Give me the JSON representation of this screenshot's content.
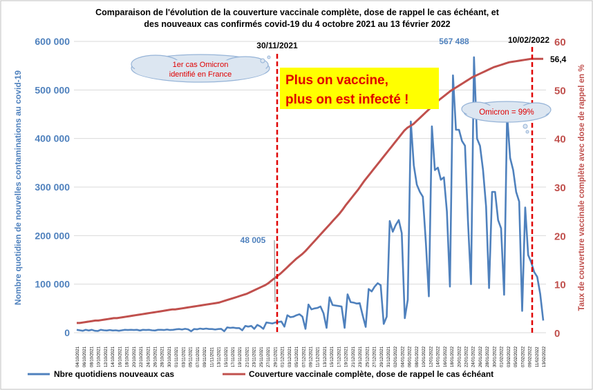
{
  "chart_data": {
    "type": "line",
    "title_lines": [
      "Comparaison de l'évolution de la couverture vaccinale complète, dose de rappel le cas échéant, et",
      "des nouveaux cas confirmés covid-19 du 4 octobre 2021 au 13 février 2022"
    ],
    "y_left_label": "Nombre quotidien de nouvelles contaminations au covid-19",
    "y_right_label": "Taux de couverture vaccinale complète avec dose de rappel en %",
    "y_left_ticks": [
      "0",
      "100 000",
      "200 000",
      "300 000",
      "400 000",
      "500 000",
      "600 000"
    ],
    "y_right_ticks": [
      "0",
      "10",
      "20",
      "30",
      "40",
      "50",
      "60"
    ],
    "y_left_range": [
      0,
      600000
    ],
    "y_right_range": [
      0,
      60
    ],
    "x_ticks": [
      "04/10/2021",
      "06/10/2021",
      "08/10/2021",
      "10/10/2021",
      "12/10/2021",
      "14/10/2021",
      "16/10/2021",
      "18/10/2021",
      "20/10/2021",
      "22/10/2021",
      "24/10/2021",
      "26/10/2021",
      "28/10/2021",
      "30/10/2021",
      "01/11/2021",
      "03/11/2021",
      "05/11/2021",
      "07/11/2021",
      "09/11/2021",
      "11/11/2021",
      "13/11/2021",
      "15/11/2021",
      "17/11/2021",
      "19/11/2021",
      "21/11/2021",
      "23/11/2021",
      "25/11/2021",
      "27/11/2021",
      "29/11/2021",
      "01/12/2021",
      "03/12/2021",
      "05/12/2021",
      "07/12/2021",
      "09/12/2021",
      "11/12/2021",
      "13/12/2021",
      "15/12/2021",
      "17/12/2021",
      "19/12/2021",
      "21/12/2021",
      "23/12/2021",
      "25/12/2021",
      "27/12/2021",
      "29/12/2021",
      "31/12/2021",
      "02/01/2022",
      "04/01/2022",
      "06/01/2022",
      "08/01/2022",
      "10/01/2022",
      "12/01/2022",
      "14/01/2022",
      "16/01/2022",
      "18/01/2022",
      "20/01/2022",
      "22/01/2022",
      "24/01/2022",
      "26/01/2022",
      "28/01/2022",
      "30/01/2022",
      "01/02/2022",
      "03/02/2022",
      "05/02/2022",
      "07/02/2022",
      "09/02/2022",
      "11/02/2022",
      "13/02/2022"
    ],
    "series": [
      {
        "name": "Nbre quotidiens nouveaux cas",
        "color": "#4f81bd",
        "axis": "left",
        "values": [
          6000,
          5000,
          4000,
          6000,
          4500,
          6000,
          4000,
          3500,
          6000,
          5000,
          4500,
          5500,
          4500,
          5000,
          4000,
          5000,
          6000,
          5500,
          6000,
          5500,
          6000,
          4500,
          6000,
          5500,
          6000,
          5000,
          4500,
          6000,
          6000,
          5500,
          6500,
          5500,
          6000,
          7000,
          7500,
          6500,
          8000,
          7000,
          3000,
          7500,
          7000,
          8500,
          7500,
          8500,
          7500,
          7500,
          6500,
          7500,
          8000,
          3000,
          11000,
          10000,
          10500,
          9500,
          9500,
          5000,
          14000,
          12500,
          14000,
          8000,
          16000,
          13000,
          8000,
          21000,
          20000,
          19000,
          21000,
          22000,
          23000,
          12500,
          36000,
          32000,
          33000,
          36000,
          38000,
          33000,
          8000,
          58000,
          48005,
          50000,
          51000,
          54000,
          40000,
          10000,
          73000,
          57000,
          56000,
          55000,
          54000,
          10000,
          79000,
          63000,
          62000,
          60000,
          61000,
          36000,
          12000,
          90000,
          85000,
          95000,
          102000,
          98000,
          18000,
          33000,
          230000,
          208000,
          222000,
          232000,
          205000,
          30000,
          68000,
          435000,
          345000,
          305000,
          290000,
          280000,
          185000,
          75000,
          425000,
          335000,
          340000,
          315000,
          320000,
          250000,
          95000,
          530000,
          418000,
          418000,
          395000,
          385000,
          230000,
          100000,
          567488,
          400000,
          385000,
          335000,
          260000,
          92000,
          290000,
          290000,
          232000,
          215000,
          78000,
          450000,
          360000,
          335000,
          290000,
          270000,
          45000,
          258000,
          160000,
          145000,
          125000,
          115000,
          80000,
          25000
        ]
      },
      {
        "name": "Couverture vaccinale complète, dose de rappel le cas échéant",
        "color": "#c0504d",
        "axis": "right",
        "values": [
          2,
          2,
          2.1,
          2.2,
          2.3,
          2.4,
          2.5,
          2.5,
          2.6,
          2.7,
          2.8,
          2.9,
          3,
          3,
          3.1,
          3.2,
          3.3,
          3.4,
          3.5,
          3.6,
          3.7,
          3.8,
          3.9,
          4,
          4.1,
          4.2,
          4.3,
          4.4,
          4.5,
          4.6,
          4.7,
          4.8,
          4.8,
          4.9,
          5,
          5.1,
          5.2,
          5.3,
          5.4,
          5.5,
          5.6,
          5.7,
          5.8,
          5.9,
          6,
          6.1,
          6.2,
          6.4,
          6.6,
          6.8,
          7,
          7.2,
          7.4,
          7.6,
          7.8,
          8,
          8.3,
          8.6,
          8.9,
          9.2,
          9.5,
          9.8,
          10.2,
          10.7,
          11.2,
          11.7,
          12.2,
          12.8,
          13.4,
          14,
          14.6,
          15.2,
          15.7,
          16.2,
          16.8,
          17.5,
          18.2,
          18.9,
          19.6,
          20.3,
          21,
          21.7,
          22.4,
          23.1,
          23.8,
          24.5,
          25.3,
          26.2,
          27,
          27.8,
          28.6,
          29.4,
          30.3,
          31.2,
          32,
          32.8,
          33.6,
          34.4,
          35.2,
          36,
          36.8,
          37.6,
          38.4,
          39.2,
          40,
          40.8,
          41.6,
          42.2,
          42.6,
          43,
          43.6,
          44.2,
          44.8,
          45.4,
          46,
          46.6,
          47.2,
          47.8,
          48.3,
          48.8,
          49.3,
          49.8,
          50.2,
          50.6,
          51,
          51.4,
          51.8,
          52.2,
          52.6,
          52.9,
          53.2,
          53.5,
          53.8,
          54.1,
          54.4,
          54.7,
          54.9,
          55.1,
          55.3,
          55.5,
          55.7,
          55.8,
          55.9,
          56,
          56.1,
          56.2,
          56.3,
          56.4,
          56.4,
          56.4,
          56.4,
          56.4
        ]
      }
    ],
    "annotations": {
      "date_line_1": "30/11/2021",
      "date_line_2": "10/02/2022",
      "label_48005": "48 005",
      "label_567488": "567 488",
      "label_564": "56,4",
      "cloud_omicron_line1": "1er cas Omicron",
      "cloud_omicron_line2": "identifié en France",
      "cloud_omicron_99": "Omicron = 99%",
      "headline_line1": "Plus on vaccine,",
      "headline_line2": "plus on est infecté !"
    },
    "grid": true,
    "legend_position": "bottom"
  },
  "colors": {
    "cases": "#4f81bd",
    "coverage": "#c0504d",
    "dash": "#e00000",
    "headline_bg": "#ffff00",
    "headline_text": "#e00000",
    "cloud_fill": "#dce6f1"
  }
}
